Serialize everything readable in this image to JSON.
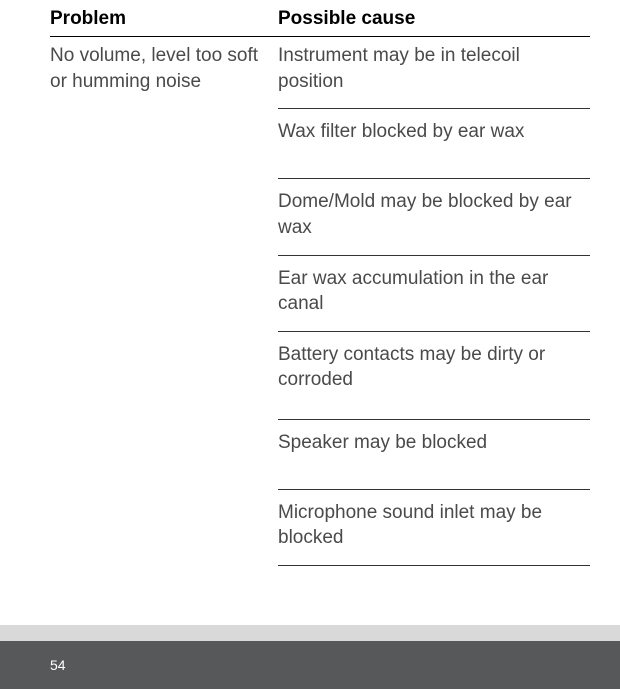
{
  "table": {
    "headers": {
      "problem": "Problem",
      "cause": "Possible cause"
    },
    "problem_text": "No volume, level too soft or humming noise",
    "causes": [
      "Instrument may be in telecoil position",
      "Wax filter blocked by ear wax",
      "Dome/Mold may be blocked by ear wax",
      "Ear wax accumulation in the ear canal",
      "Battery contacts may be dirty or corroded",
      "Speaker may be blocked",
      "Microphone sound inlet may be blocked"
    ]
  },
  "page_number": "54",
  "colors": {
    "text_body": "#4a4a4a",
    "text_header": "#000000",
    "border": "#333333",
    "footer_bg": "#57585a",
    "strip_bg": "#d9d9d9",
    "page_num": "#ffffff"
  }
}
